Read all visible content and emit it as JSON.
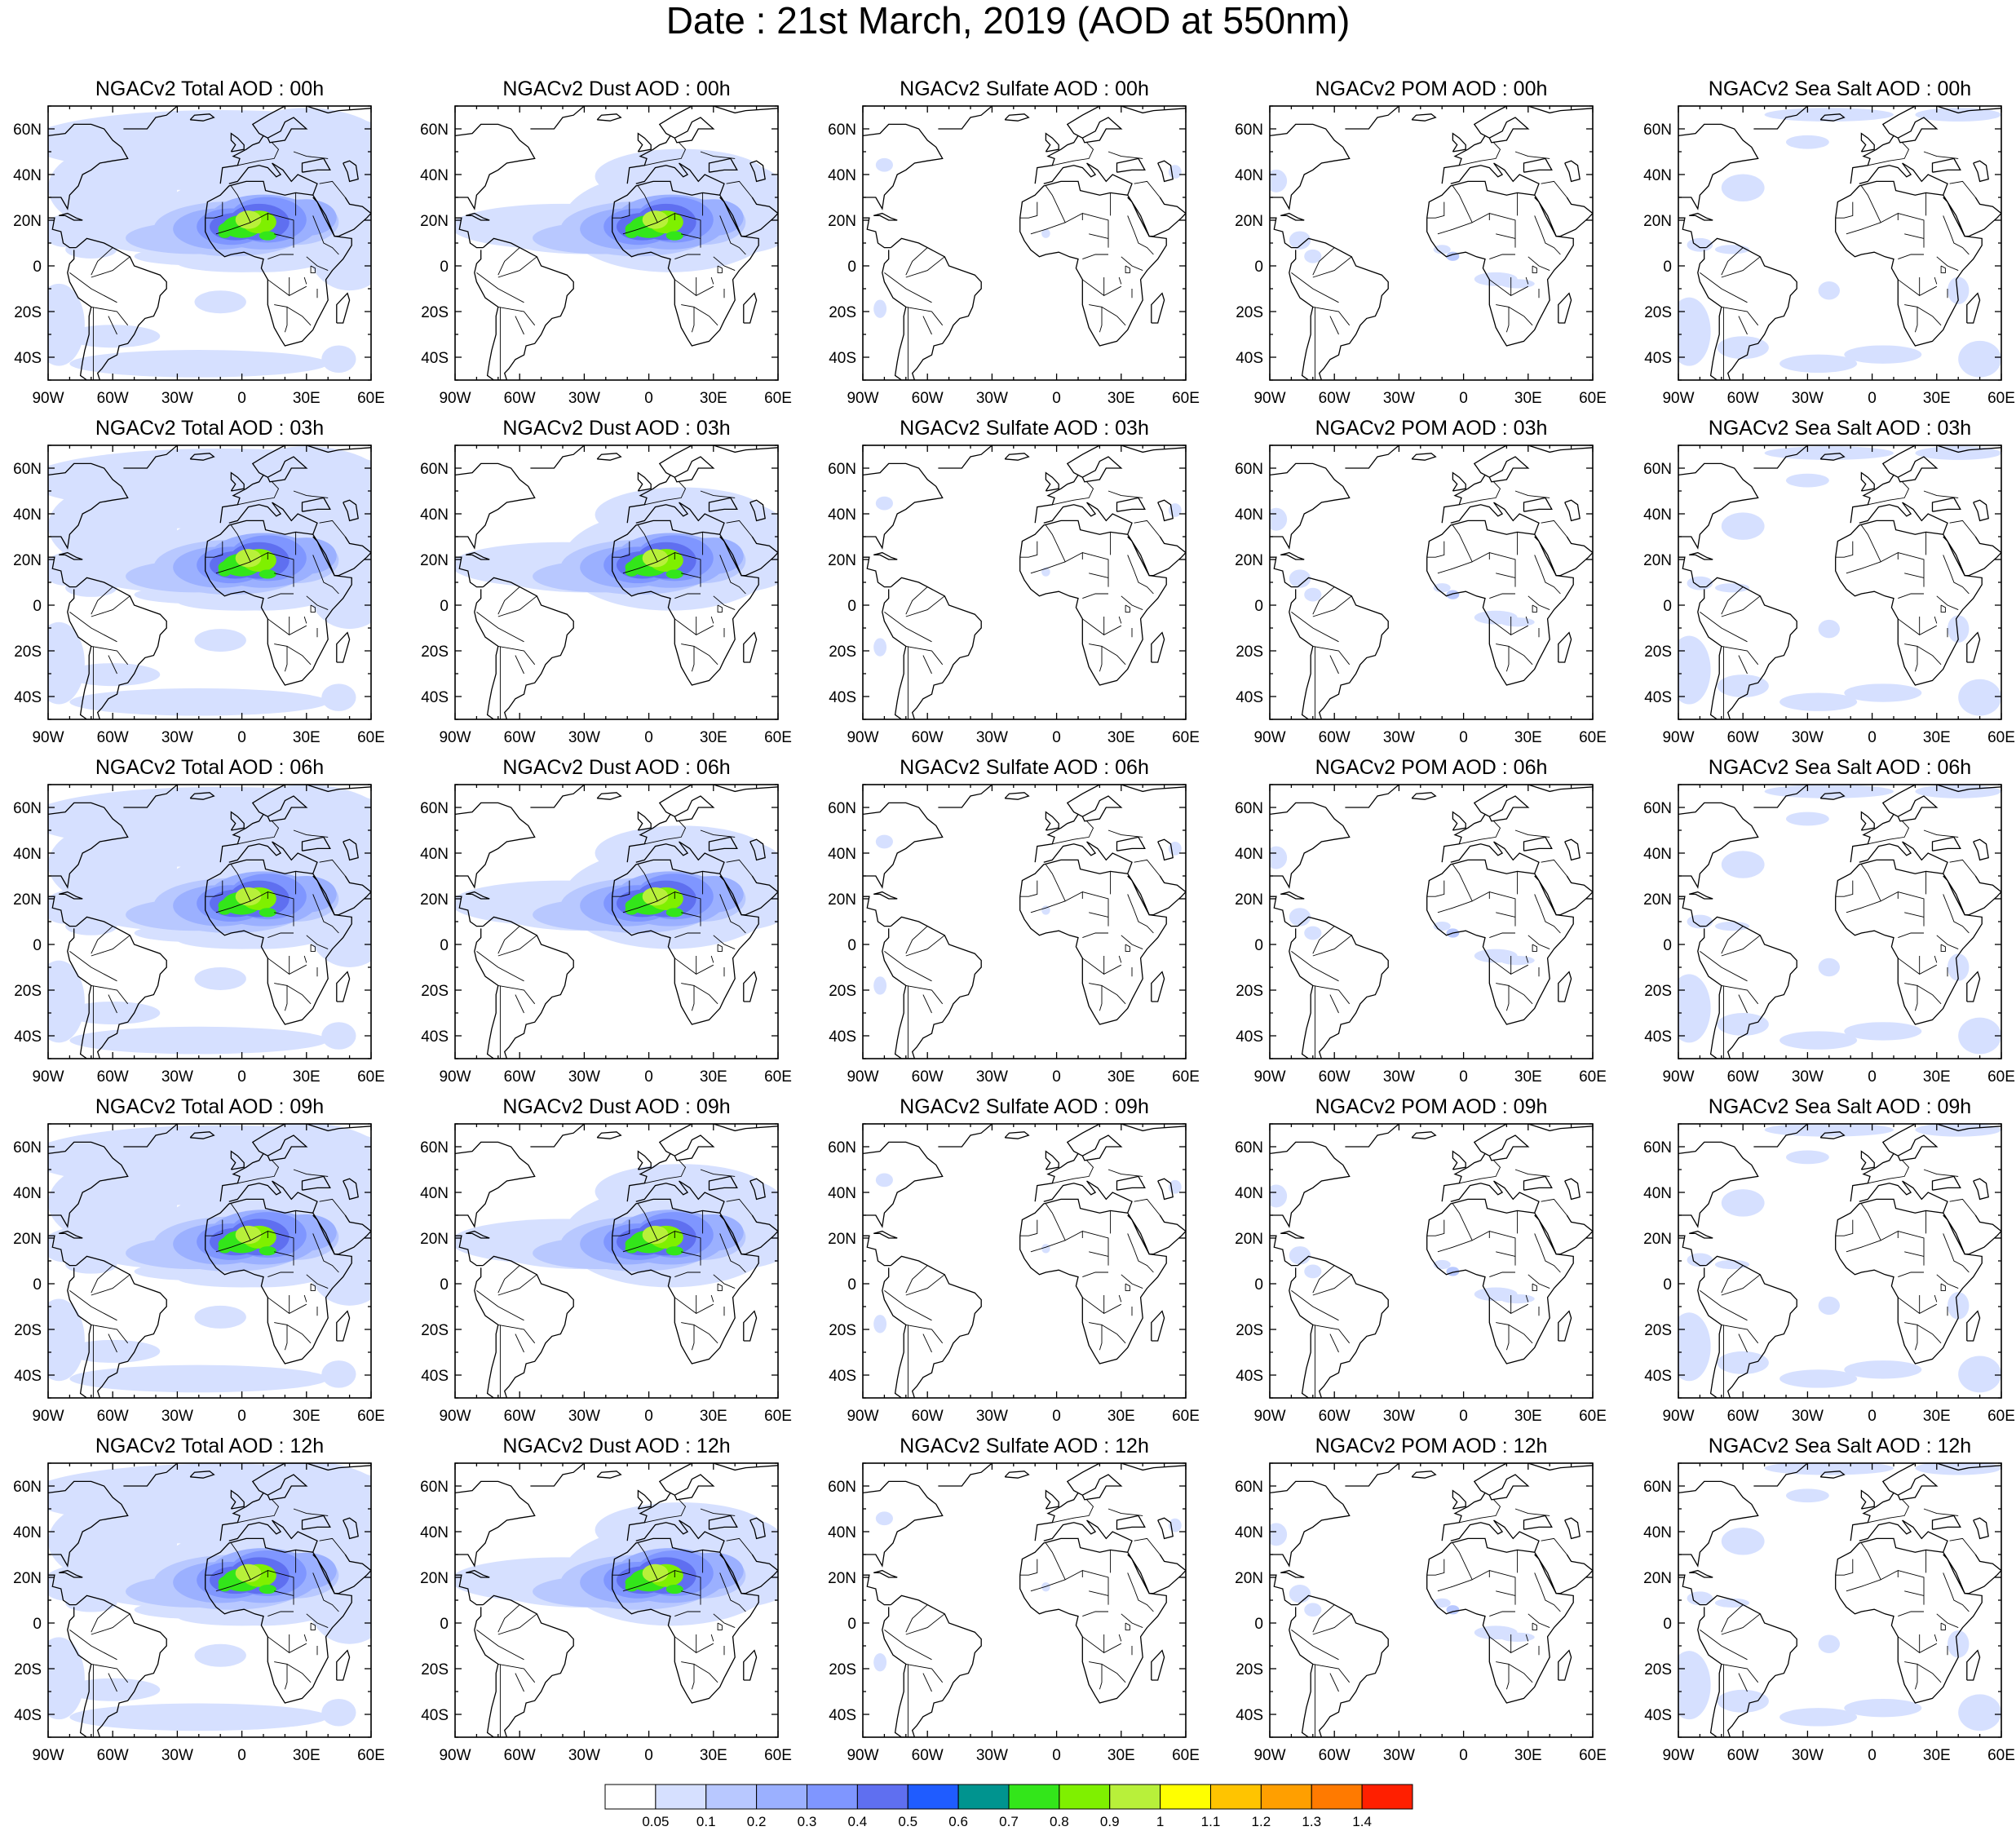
{
  "title": "Date : 21st March, 2019 (AOD at 550nm)",
  "grid": {
    "rows": [
      "00h",
      "03h",
      "06h",
      "09h",
      "12h"
    ],
    "columns": [
      {
        "key": "total",
        "titles": [
          "NGACv2 Total AOD : 00h",
          "NGACv2 Total AOD : 03h",
          "NGACv2 Total AOD : 06h",
          "NGACv2 Total AOD : 09h",
          "NGACv2 Total AOD  : 12h"
        ]
      },
      {
        "key": "dust",
        "titles": [
          "NGACv2 Dust AOD : 00h",
          "NGACv2 Dust AOD : 03h",
          "NGACv2 Dust AOD : 06h",
          "NGACv2 Dust AOD : 09h",
          "NGACv2 Dust AOD : 12h"
        ]
      },
      {
        "key": "sulfate",
        "titles": [
          "NGACv2 Sulfate AOD : 00h",
          "NGACv2 Sulfate AOD : 03h",
          "NGACv2 Sulfate AOD : 06h",
          "NGACv2 Sulfate AOD : 09h",
          "NGACv2 Sulfate AOD : 12h"
        ]
      },
      {
        "key": "pom",
        "titles": [
          "NGACv2 POM AOD : 00h",
          "NGACv2 POM AOD : 03h",
          "NGACv2 POM AOD : 06h",
          "NGACv2 POM AOD : 09h",
          "NGACv2 POM  AOD : 12h"
        ]
      },
      {
        "key": "seasalt",
        "titles": [
          "NGACv2 Sea Salt AOD : 00h",
          "NGACv2 Sea Salt AOD : 03h",
          "NGACv2 Sea Salt AOD : 06h",
          "NGACv2 Sea Salt  AOD : 09h",
          "NGACv2 Sea Salt  AOD : 12h"
        ]
      }
    ]
  },
  "map_extent": {
    "lon": [
      -90,
      60
    ],
    "lat": [
      -50,
      70
    ]
  },
  "lon_ticks": [
    {
      "value": -90,
      "label": "90W"
    },
    {
      "value": -60,
      "label": "60W"
    },
    {
      "value": -30,
      "label": "30W"
    },
    {
      "value": 0,
      "label": "0"
    },
    {
      "value": 30,
      "label": "30E"
    },
    {
      "value": 60,
      "label": "60E"
    }
  ],
  "lat_ticks": [
    {
      "value": 60,
      "label": "60N"
    },
    {
      "value": 40,
      "label": "40N"
    },
    {
      "value": 20,
      "label": "20N"
    },
    {
      "value": 0,
      "label": "0"
    },
    {
      "value": -20,
      "label": "20S"
    },
    {
      "value": -40,
      "label": "40S"
    }
  ],
  "colorbar": {
    "colors": [
      "#ffffff",
      "#d6e0ff",
      "#b8c8ff",
      "#9bb0ff",
      "#7f96ff",
      "#5f6ff0",
      "#1f5cff",
      "#00948f",
      "#33e61a",
      "#7ff000",
      "#b8f03a",
      "#ffff00",
      "#ffc400",
      "#ff9f00",
      "#ff7a00",
      "#ff1f00"
    ],
    "labels": [
      "0.05",
      "0.1",
      "0.2",
      "0.3",
      "0.4",
      "0.5",
      "0.6",
      "0.7",
      "0.8",
      "0.9",
      "1",
      "1.1",
      "1.2",
      "1.3",
      "1.4"
    ]
  }
}
